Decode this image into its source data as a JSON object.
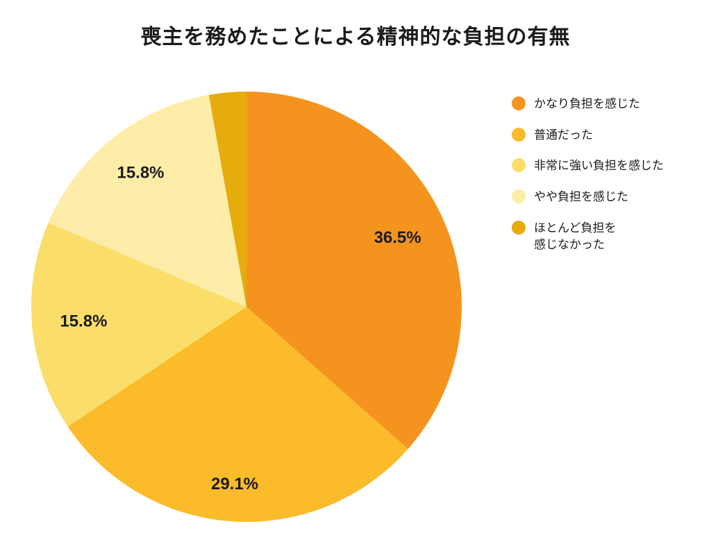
{
  "chart_data": {
    "type": "pie",
    "title": "喪主を務めたことによる精神的な負担の有無",
    "title_color": "#1b1b1b",
    "background_color": "#ffffff",
    "start_angle_deg": 0,
    "direction": "clockwise",
    "legend_position": "right",
    "slices": [
      {
        "label": "かなり負担を感じた",
        "label_lines": [
          "かなり負担を感じた"
        ],
        "value": 36.5,
        "pct_label": "36.5%",
        "color": "#F4941E",
        "label_radius": 0.77
      },
      {
        "label": "普通だった",
        "label_lines": [
          "普通だった"
        ],
        "value": 29.1,
        "pct_label": "29.1%",
        "color": "#FBBB2A",
        "label_radius": 0.83
      },
      {
        "label": "非常に強い負担を感じた",
        "label_lines": [
          "非常に強い負担を感じた"
        ],
        "value": 15.8,
        "pct_label": "15.8%",
        "color": "#FADE69",
        "label_radius": 0.76
      },
      {
        "label": "やや負担を感じた",
        "label_lines": [
          "やや負担を感じた"
        ],
        "value": 15.8,
        "pct_label": "15.8%",
        "color": "#FDEDA8",
        "label_radius": 0.79
      },
      {
        "label": "ほとんど負担を感じなかった",
        "label_lines": [
          "ほとんど負担を",
          "感じなかった"
        ],
        "value": 2.8,
        "pct_label": "",
        "color": "#E6AC0D",
        "label_radius": 0.8
      }
    ]
  }
}
